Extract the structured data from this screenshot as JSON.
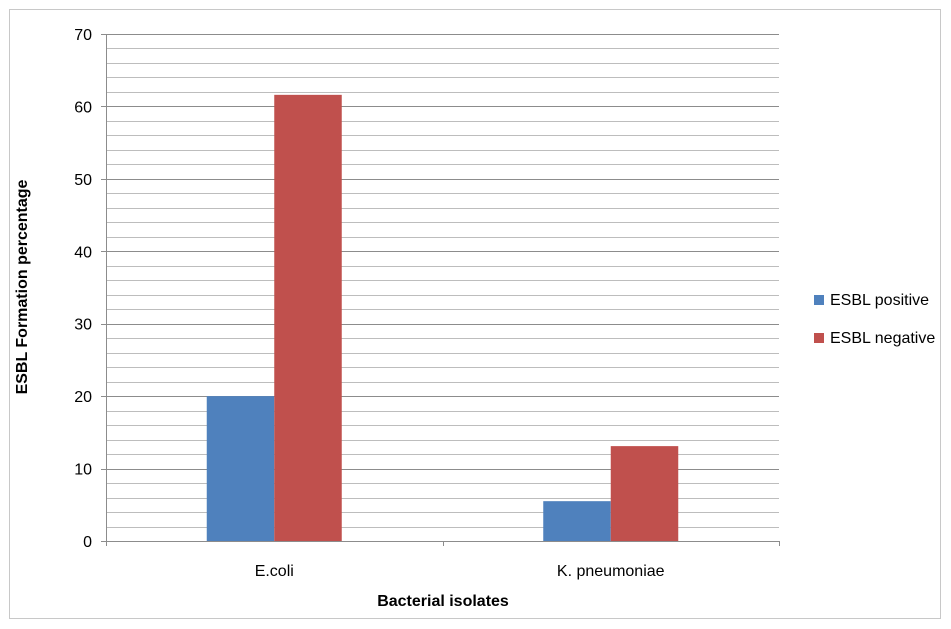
{
  "chart_data": {
    "type": "bar",
    "title": "",
    "xlabel": "Bacterial isolates",
    "ylabel": "ESBL Formation percentage",
    "categories": [
      "E.coli",
      "K. pneumoniae"
    ],
    "series": [
      {
        "name": "ESBL positive",
        "values": [
          20,
          5.5
        ],
        "color": "#4f81bd"
      },
      {
        "name": "ESBL negative",
        "values": [
          61.6,
          13.1
        ],
        "color": "#c0504d"
      }
    ],
    "ylim": [
      0,
      70
    ],
    "yticks": [
      0,
      10,
      20,
      30,
      40,
      50,
      60,
      70
    ],
    "minor_gridline_step": 2,
    "grid": true,
    "legend_position": "right"
  }
}
